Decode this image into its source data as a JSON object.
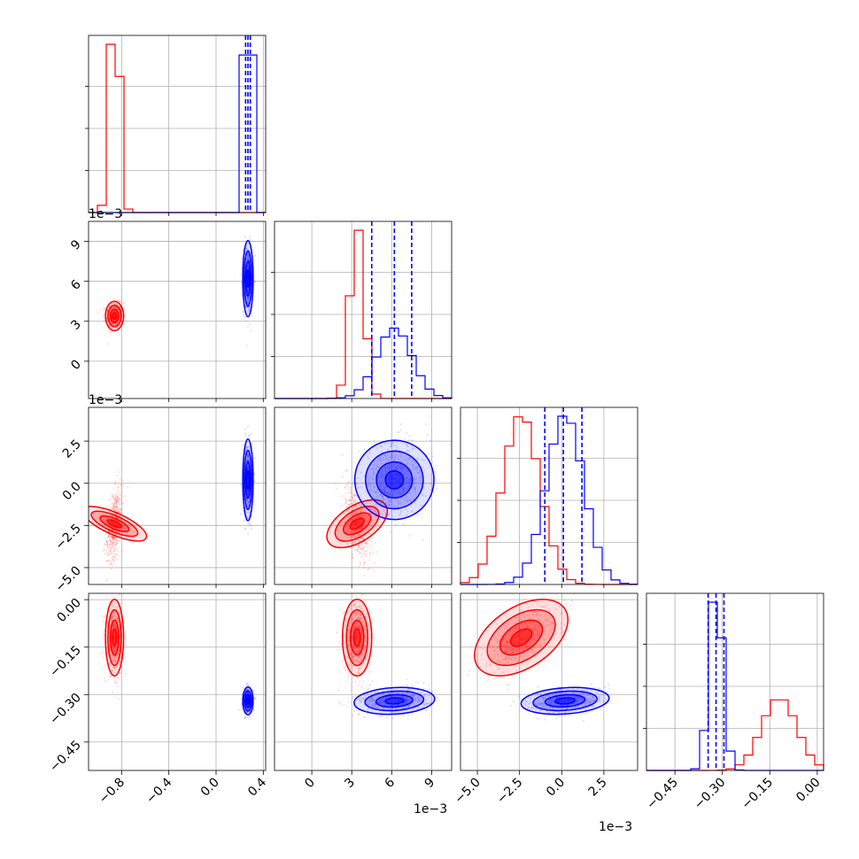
{
  "colors": {
    "red": "#ff0000",
    "blue": "#0000ff",
    "grid": "#b0b0b0",
    "frame": "#000000"
  },
  "chart_data": {
    "type": "corner",
    "grid": true,
    "red_samples": {
      "comment": "",
      "p0": {
        "mean": -0.86,
        "sd": 0.035
      },
      "p1": {
        "mean": 3.4,
        "sd": 0.5
      },
      "p2": {
        "mean": -2.4,
        "sd": 1.1
      },
      "p3": {
        "mean": -0.12,
        "sd": 0.055
      }
    },
    "blue_samples": {
      "p0": {
        "mean": 0.27,
        "sd": 0.02
      },
      "p1": {
        "mean": 6.2,
        "sd": 1.3
      },
      "p2": {
        "mean": 0.2,
        "sd": 1.1
      },
      "p3": {
        "mean": -0.32,
        "sd": 0.02
      }
    },
    "parameters": [
      {
        "range": [
          -1.08,
          0.42
        ],
        "ticks": [
          -0.8,
          -0.4,
          0.0,
          0.4
        ],
        "tick_labels": [
          "−0.8",
          "−0.4",
          "0.0",
          "0.4"
        ],
        "offset": "",
        "blue_quantiles": [
          0.25,
          0.27,
          0.29
        ]
      },
      {
        "range": [
          -2.8,
          10.5
        ],
        "ticks": [
          0,
          3,
          6,
          9
        ],
        "tick_labels": [
          "0",
          "3",
          "6",
          "9"
        ],
        "offset": "1e−3",
        "blue_quantiles": [
          4.5,
          6.2,
          7.5
        ]
      },
      {
        "range": [
          -6.0,
          4.5
        ],
        "ticks": [
          -5.0,
          -2.5,
          0.0,
          2.5
        ],
        "tick_labels": [
          "−5.0",
          "−2.5",
          "0.0",
          "2.5"
        ],
        "offset": "1e−3",
        "blue_quantiles": [
          -1.0,
          0.1,
          1.2
        ]
      },
      {
        "range": [
          -0.54,
          0.02
        ],
        "ticks": [
          -0.45,
          -0.3,
          -0.15,
          0.0
        ],
        "tick_labels": [
          "−0.45",
          "−0.30",
          "−0.15",
          "0.00"
        ],
        "offset": "",
        "blue_quantiles": [
          -0.345,
          -0.32,
          -0.295
        ]
      }
    ],
    "offset_labels": {
      "row1": "1e−3",
      "row2": "1e−3",
      "col0_top": "1e−3"
    }
  }
}
